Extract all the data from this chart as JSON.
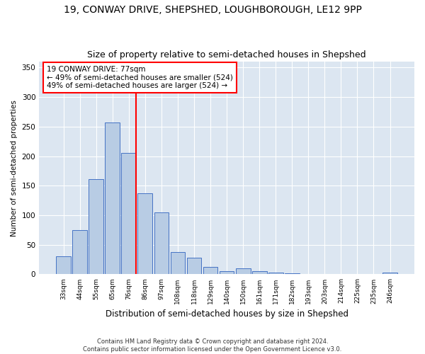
{
  "title": "19, CONWAY DRIVE, SHEPSHED, LOUGHBOROUGH, LE12 9PP",
  "subtitle": "Size of property relative to semi-detached houses in Shepshed",
  "xlabel": "Distribution of semi-detached houses by size in Shepshed",
  "ylabel": "Number of semi-detached properties",
  "categories": [
    "33sqm",
    "44sqm",
    "55sqm",
    "65sqm",
    "76sqm",
    "86sqm",
    "97sqm",
    "108sqm",
    "118sqm",
    "129sqm",
    "140sqm",
    "150sqm",
    "161sqm",
    "171sqm",
    "182sqm",
    "193sqm",
    "203sqm",
    "214sqm",
    "225sqm",
    "235sqm",
    "246sqm"
  ],
  "values": [
    30,
    75,
    161,
    257,
    205,
    137,
    105,
    38,
    28,
    13,
    5,
    10,
    5,
    3,
    2,
    0,
    0,
    0,
    0,
    0,
    3
  ],
  "bar_color": "#b8cce4",
  "bar_edge_color": "#4472c4",
  "vline_index": 4,
  "annotation_title": "19 CONWAY DRIVE: 77sqm",
  "annotation_line1": "← 49% of semi-detached houses are smaller (524)",
  "annotation_line2": "49% of semi-detached houses are larger (524) →",
  "annotation_box_color": "white",
  "annotation_box_edge_color": "red",
  "vline_color": "red",
  "ylim": [
    0,
    360
  ],
  "yticks": [
    0,
    50,
    100,
    150,
    200,
    250,
    300,
    350
  ],
  "plot_background": "#dce6f1",
  "footer_line1": "Contains HM Land Registry data © Crown copyright and database right 2024.",
  "footer_line2": "Contains public sector information licensed under the Open Government Licence v3.0.",
  "title_fontsize": 10,
  "subtitle_fontsize": 9
}
